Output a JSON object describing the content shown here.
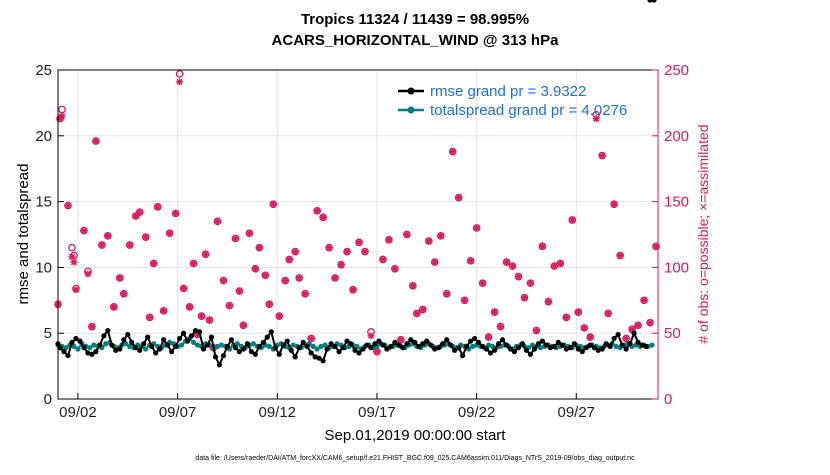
{
  "chart_data": {
    "type": "line",
    "title_line1": "Tropics 11324 / 11439 = 98.995%",
    "title_line2": "ACARS_HORIZONTAL_WIND @ 313 hPa",
    "xlabel": "Sep.01,2019 00:00:00 start",
    "ylabel_left": "rmse and totalspread",
    "ylabel_right": "# of obs: o=possible; ×=assimilated",
    "footer": "data file: /Users/raeder/DAI/ATM_forcXX/CAM6_setup/f.e21.FHIST_BGC.f09_025.CAM6assim.011/Diags_NTrS_2019-09/obs_diag_output.nc",
    "xlim": [
      1,
      31.1
    ],
    "ylim_left": [
      0,
      25
    ],
    "ylim_right": [
      0,
      250
    ],
    "left_ticks": [
      "0",
      "5",
      "10",
      "15",
      "20",
      "25"
    ],
    "right_ticks": [
      "0",
      "50",
      "100",
      "150",
      "200",
      "250"
    ],
    "x_ticks": [
      {
        "day": 2,
        "label": "09/02"
      },
      {
        "day": 7,
        "label": "09/07"
      },
      {
        "day": 12,
        "label": "09/12"
      },
      {
        "day": 17,
        "label": "09/17"
      },
      {
        "day": 22,
        "label": "09/22"
      },
      {
        "day": 27,
        "label": "09/27"
      }
    ],
    "legend": [
      {
        "name": "rmse grand pr = 3.9322",
        "color": "#000000"
      },
      {
        "name": "totalspread grand pr = 4.0276",
        "color": "#00807f"
      }
    ],
    "colors": {
      "rmse": "#000000",
      "spread": "#00807f",
      "obs": "#d81b60",
      "axis_right": "#d81b60",
      "legend_text": "#1e6fd9"
    },
    "rmse_days": [
      1.0,
      1.1,
      1.3,
      1.5,
      1.7,
      1.9,
      2.1,
      2.3,
      2.5,
      2.7,
      2.9,
      3.1,
      3.3,
      3.5,
      3.7,
      3.9,
      4.1,
      4.3,
      4.5,
      4.7,
      4.9,
      5.1,
      5.3,
      5.5,
      5.7,
      5.9,
      6.1,
      6.3,
      6.5,
      6.7,
      6.9,
      7.1,
      7.3,
      7.5,
      7.7,
      7.9,
      8.1,
      8.3,
      8.5,
      8.7,
      8.9,
      9.1,
      9.3,
      9.5,
      9.7,
      9.9,
      10.1,
      10.3,
      10.5,
      10.7,
      10.9,
      11.1,
      11.3,
      11.5,
      11.7,
      11.9,
      12.1,
      12.3,
      12.5,
      12.7,
      12.9,
      13.1,
      13.3,
      13.5,
      13.7,
      13.9,
      14.1,
      14.3,
      14.5,
      14.7,
      14.9,
      15.1,
      15.3,
      15.5,
      15.7,
      15.9,
      16.1,
      16.3,
      16.5,
      16.7,
      16.9,
      17.1,
      17.3,
      17.5,
      17.7,
      17.9,
      18.1,
      18.3,
      18.5,
      18.7,
      18.9,
      19.1,
      19.3,
      19.5,
      19.7,
      19.9,
      20.1,
      20.3,
      20.5,
      20.7,
      20.9,
      21.1,
      21.3,
      21.5,
      21.7,
      21.9,
      22.1,
      22.3,
      22.5,
      22.7,
      22.9,
      23.1,
      23.3,
      23.5,
      23.7,
      23.9,
      24.1,
      24.3,
      24.5,
      24.7,
      24.9,
      25.1,
      25.3,
      25.5,
      25.7,
      25.9,
      26.1,
      26.3,
      26.5,
      26.7,
      26.9,
      27.1,
      27.3,
      27.5,
      27.7,
      27.9,
      28.1,
      28.3,
      28.5,
      28.7,
      28.9,
      29.1,
      29.3,
      29.5,
      29.7,
      29.9,
      30.1,
      30.3,
      30.5,
      30.7,
      30.9
    ],
    "rmse": [
      4.2,
      3.9,
      3.6,
      3.3,
      4.3,
      4.6,
      4.4,
      3.9,
      3.5,
      3.4,
      3.6,
      4.1,
      4.8,
      5.2,
      4.1,
      3.7,
      3.8,
      4.5,
      4.9,
      4.3,
      3.9,
      3.7,
      4.2,
      4.7,
      4.0,
      3.5,
      3.8,
      4.5,
      4.1,
      3.6,
      4.0,
      4.6,
      5.0,
      4.4,
      4.8,
      5.2,
      5.1,
      3.8,
      4.1,
      4.7,
      3.2,
      2.6,
      3.3,
      4.0,
      4.5,
      3.9,
      3.6,
      3.8,
      4.2,
      3.6,
      3.4,
      4.0,
      4.3,
      4.7,
      5.1,
      3.9,
      3.4,
      4.1,
      4.4,
      3.7,
      3.2,
      3.9,
      4.3,
      4.0,
      3.5,
      3.2,
      3.1,
      2.9,
      3.8,
      4.2,
      4.0,
      3.6,
      3.9,
      4.4,
      4.2,
      3.7,
      3.5,
      3.8,
      4.1,
      3.9,
      4.2,
      4.4,
      4.1,
      3.8,
      4.0,
      4.3,
      4.1,
      3.9,
      4.2,
      4.5,
      4.3,
      4.0,
      4.2,
      4.4,
      4.1,
      3.8,
      3.9,
      4.2,
      4.5,
      4.1,
      3.7,
      3.9,
      3.3,
      4.0,
      4.4,
      4.6,
      4.3,
      4.0,
      3.8,
      3.5,
      3.7,
      4.2,
      4.5,
      4.1,
      3.8,
      3.6,
      3.9,
      4.2,
      3.7,
      3.4,
      3.8,
      4.2,
      4.4,
      4.1,
      3.9,
      4.0,
      4.3,
      4.1,
      3.8,
      3.9,
      4.2,
      3.8,
      3.6,
      3.9,
      4.1,
      3.9,
      3.7,
      3.8,
      4.2,
      4.0,
      4.6,
      4.9,
      4.1,
      3.8,
      4.2,
      5.0,
      4.3,
      4.1,
      4.0
    ],
    "spread_days": [
      1.0,
      1.2,
      1.4,
      1.6,
      1.8,
      2.0,
      2.2,
      2.4,
      2.6,
      2.8,
      3.0,
      3.2,
      3.4,
      3.6,
      3.8,
      4.0,
      4.2,
      4.4,
      4.6,
      4.8,
      5.0,
      5.2,
      5.4,
      5.6,
      5.8,
      6.0,
      6.2,
      6.4,
      6.6,
      6.8,
      7.0,
      7.2,
      7.4,
      7.6,
      7.8,
      8.0,
      8.2,
      8.4,
      8.6,
      8.8,
      9.0,
      9.2,
      9.4,
      9.6,
      9.8,
      10.0,
      10.2,
      10.4,
      10.6,
      10.8,
      11.0,
      11.2,
      11.4,
      11.6,
      11.8,
      12.0,
      12.2,
      12.4,
      12.6,
      12.8,
      13.0,
      13.2,
      13.4,
      13.6,
      13.8,
      14.0,
      14.2,
      14.4,
      14.6,
      14.8,
      15.0,
      15.2,
      15.4,
      15.6,
      15.8,
      16.0,
      16.2,
      16.4,
      16.6,
      16.8,
      17.0,
      17.2,
      17.4,
      17.6,
      17.8,
      18.0,
      18.2,
      18.4,
      18.6,
      18.8,
      19.0,
      19.2,
      19.4,
      19.6,
      19.8,
      20.0,
      20.2,
      20.4,
      20.6,
      20.8,
      21.0,
      21.2,
      21.4,
      21.6,
      21.8,
      22.0,
      22.2,
      22.4,
      22.6,
      22.8,
      23.0,
      23.2,
      23.4,
      23.6,
      23.8,
      24.0,
      24.2,
      24.4,
      24.6,
      24.8,
      25.0,
      25.2,
      25.4,
      25.6,
      25.8,
      26.0,
      26.2,
      26.4,
      26.6,
      26.8,
      27.0,
      27.2,
      27.4,
      27.6,
      27.8,
      28.0,
      28.2,
      28.4,
      28.6,
      28.8,
      29.0,
      29.2,
      29.4,
      29.6,
      29.8,
      30.0,
      30.2,
      30.4,
      30.6,
      30.8
    ],
    "spread": [
      4.1,
      4.0,
      3.9,
      4.1,
      4.0,
      3.8,
      4.2,
      4.0,
      3.9,
      4.1,
      4.0,
      3.9,
      4.2,
      4.3,
      4.0,
      3.9,
      4.1,
      4.2,
      4.0,
      3.9,
      4.1,
      4.0,
      3.8,
      4.1,
      4.2,
      4.0,
      3.9,
      4.1,
      4.3,
      4.2,
      4.0,
      4.1,
      4.4,
      4.6,
      4.3,
      4.1,
      4.0,
      4.2,
      4.1,
      3.9,
      4.0,
      4.1,
      4.0,
      3.8,
      4.1,
      4.2,
      4.0,
      3.9,
      4.1,
      4.2,
      4.0,
      3.9,
      4.1,
      4.0,
      3.8,
      4.1,
      4.2,
      4.0,
      3.9,
      4.1,
      4.0,
      3.9,
      4.1,
      4.2,
      4.0,
      3.8,
      4.0,
      4.1,
      3.9,
      4.0,
      4.2,
      4.1,
      3.9,
      4.0,
      4.1,
      4.0,
      3.8,
      4.0,
      4.1,
      3.9,
      4.0,
      4.2,
      4.1,
      3.9,
      4.0,
      4.1,
      4.0,
      3.9,
      4.1,
      4.2,
      4.0,
      3.9,
      4.1,
      4.2,
      4.0,
      3.9,
      4.0,
      4.1,
      4.2,
      4.0,
      3.9,
      4.1,
      4.0,
      3.8,
      4.0,
      4.1,
      4.0,
      3.9,
      4.1,
      4.0,
      3.9,
      4.0,
      4.1,
      4.0,
      3.8,
      4.0,
      4.1,
      4.0,
      3.9,
      4.1,
      4.0,
      3.9,
      4.0,
      4.1,
      4.0,
      3.9,
      4.0,
      4.1,
      4.0,
      3.9,
      4.1,
      4.0,
      3.9,
      4.0,
      4.1,
      4.0,
      3.9,
      4.0,
      4.1,
      4.2,
      4.0,
      3.9,
      4.1,
      4.2,
      4.0,
      4.1,
      4.0,
      4.1,
      4.0,
      4.1
    ],
    "obs_days": [
      1.0,
      1.1,
      1.2,
      1.5,
      1.7,
      1.8,
      1.9,
      2.3,
      2.5,
      2.7,
      2.9,
      3.2,
      3.5,
      3.8,
      4.1,
      4.3,
      4.6,
      4.9,
      5.1,
      5.4,
      5.6,
      5.8,
      6.0,
      6.3,
      6.6,
      6.9,
      7.1,
      7.3,
      7.6,
      7.8,
      8.0,
      8.2,
      8.4,
      8.6,
      8.8,
      9.0,
      9.3,
      9.6,
      9.9,
      10.1,
      10.3,
      10.6,
      10.9,
      11.1,
      11.4,
      11.6,
      11.8,
      12.1,
      12.4,
      12.6,
      12.9,
      13.1,
      13.4,
      13.7,
      14.0,
      14.3,
      14.6,
      14.9,
      15.2,
      15.5,
      15.8,
      16.1,
      16.4,
      16.7,
      17.0,
      17.3,
      17.6,
      17.9,
      18.2,
      18.5,
      18.8,
      19.0,
      19.3,
      19.6,
      19.9,
      20.2,
      20.5,
      20.8,
      21.1,
      21.4,
      21.7,
      22.0,
      22.3,
      22.6,
      22.9,
      23.2,
      23.5,
      23.8,
      24.1,
      24.4,
      24.7,
      25.0,
      25.3,
      25.6,
      25.9,
      26.2,
      26.5,
      26.8,
      27.1,
      27.4,
      27.7,
      28.0,
      28.3,
      28.6,
      28.9,
      29.2,
      29.5,
      29.8,
      30.1,
      30.4,
      30.7,
      31.0
    ],
    "obs_possible": [
      72,
      213,
      220,
      147,
      115,
      109,
      84,
      128,
      97,
      55,
      196,
      117,
      124,
      70,
      92,
      80,
      117,
      139,
      142,
      123,
      62,
      103,
      146,
      67,
      126,
      141,
      247,
      84,
      70,
      103,
      49,
      63,
      110,
      60,
      39,
      135,
      90,
      71,
      122,
      82,
      56,
      126,
      99,
      115,
      94,
      72,
      148,
      63,
      90,
      106,
      112,
      92,
      80,
      46,
      143,
      138,
      115,
      92,
      102,
      112,
      83,
      119,
      112,
      51,
      36,
      106,
      121,
      99,
      45,
      125,
      86,
      65,
      68,
      120,
      104,
      124,
      80,
      188,
      153,
      75,
      105,
      130,
      88,
      47,
      66,
      55,
      104,
      101,
      93,
      77,
      88,
      52,
      116,
      74,
      101,
      103,
      62,
      136,
      66,
      54,
      47,
      216,
      185,
      65,
      148,
      109,
      46,
      53,
      56,
      75,
      58,
      116,
      0
    ],
    "obs_assimilated": [
      72,
      213,
      215,
      147,
      108,
      104,
      83,
      128,
      95,
      55,
      196,
      117,
      124,
      70,
      92,
      80,
      117,
      139,
      142,
      123,
      62,
      103,
      146,
      67,
      126,
      141,
      241,
      84,
      70,
      103,
      49,
      63,
      110,
      60,
      39,
      135,
      90,
      71,
      122,
      82,
      56,
      126,
      99,
      115,
      94,
      72,
      148,
      63,
      90,
      106,
      112,
      92,
      80,
      46,
      143,
      138,
      115,
      92,
      102,
      112,
      83,
      119,
      112,
      48,
      36,
      106,
      121,
      99,
      45,
      125,
      86,
      65,
      68,
      120,
      104,
      124,
      80,
      188,
      153,
      75,
      105,
      130,
      88,
      47,
      66,
      55,
      104,
      101,
      93,
      77,
      88,
      52,
      116,
      74,
      101,
      103,
      62,
      136,
      66,
      54,
      47,
      213,
      185,
      65,
      148,
      109,
      46,
      53,
      56,
      75,
      58,
      116,
      0
    ]
  }
}
